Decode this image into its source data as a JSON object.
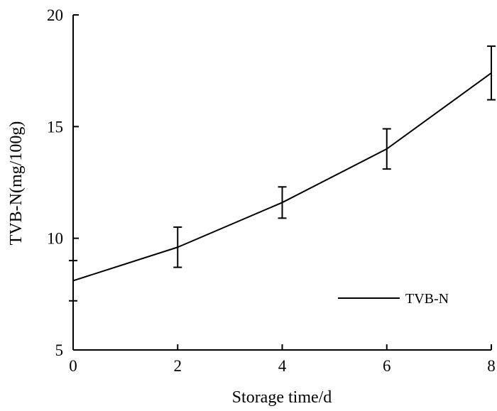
{
  "chart_data": {
    "type": "line",
    "title": "",
    "xlabel": "Storage time/d",
    "ylabel": "TVB-N(mg/100g)",
    "xlim": [
      0,
      8
    ],
    "ylim": [
      5,
      20
    ],
    "xticks": [
      0,
      2,
      4,
      6,
      8
    ],
    "yticks": [
      5,
      10,
      15,
      20
    ],
    "grid": false,
    "legend_position": "bottom-right",
    "series": [
      {
        "name": "TVB-N",
        "color": "#000000",
        "x": [
          0,
          2,
          4,
          6,
          8
        ],
        "y": [
          8.1,
          9.6,
          11.6,
          14.0,
          17.4
        ],
        "error": [
          0.9,
          0.9,
          0.7,
          0.9,
          1.2
        ]
      }
    ]
  }
}
